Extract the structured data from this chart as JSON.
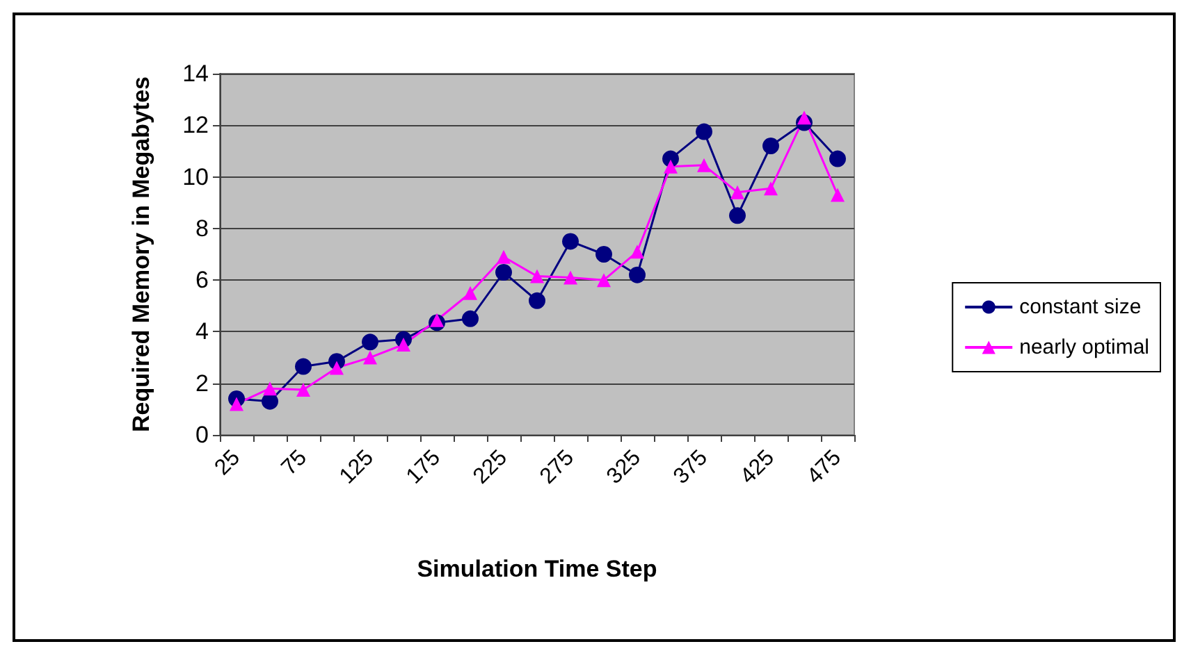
{
  "chart_data": {
    "type": "line",
    "xlabel": "Simulation Time Step",
    "ylabel": "Required Memory in Megabytes",
    "categories": [
      "25",
      null,
      "75",
      null,
      "125",
      null,
      "175",
      null,
      "225",
      null,
      "275",
      null,
      "325",
      null,
      "375",
      null,
      "425",
      null,
      "475"
    ],
    "series": [
      {
        "name": "constant size",
        "color": "#000080",
        "marker": "circle",
        "values": [
          1.4,
          1.3,
          2.65,
          2.85,
          3.6,
          3.7,
          4.35,
          4.5,
          6.3,
          5.2,
          7.5,
          7.0,
          6.2,
          10.7,
          11.75,
          8.5,
          11.2,
          12.1,
          10.7
        ]
      },
      {
        "name": "nearly optimal",
        "color": "#ff00ff",
        "marker": "triangle",
        "values": [
          1.2,
          1.8,
          1.75,
          2.6,
          3.0,
          3.5,
          4.45,
          5.5,
          6.9,
          6.15,
          6.1,
          6.0,
          7.1,
          10.4,
          10.45,
          9.4,
          9.55,
          12.3,
          9.3
        ]
      }
    ],
    "ylim": [
      0,
      14
    ],
    "yticks": [
      0,
      2,
      4,
      6,
      8,
      10,
      12,
      14
    ],
    "grid": "y",
    "legend": "right"
  }
}
